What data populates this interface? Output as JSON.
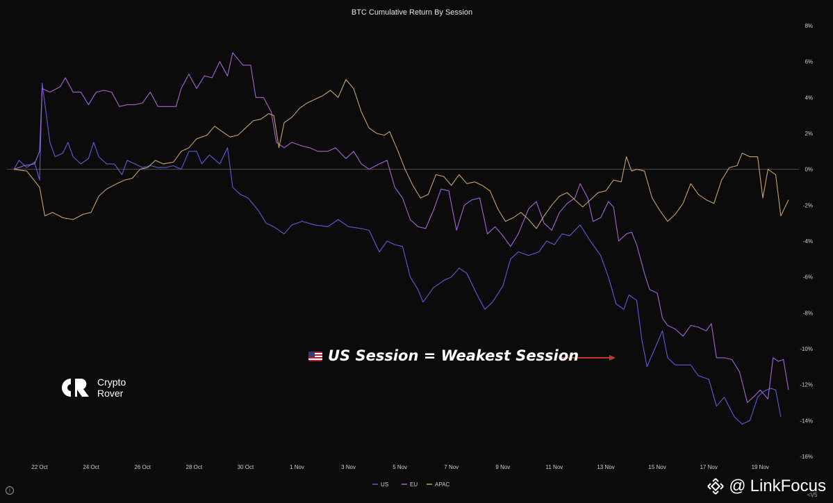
{
  "chart_data": {
    "type": "line",
    "title": "BTC Cumulative Return By Session",
    "xlabel": "",
    "ylabel": "",
    "ylim": [
      -16,
      8
    ],
    "y_ticks": [
      "8%",
      "6%",
      "4%",
      "2%",
      "0%",
      "-2%",
      "-4%",
      "-6%",
      "-8%",
      "-10%",
      "-12%",
      "-14%",
      "-16%"
    ],
    "y_tick_values": [
      8,
      6,
      4,
      2,
      0,
      -2,
      -4,
      -6,
      -8,
      -10,
      -12,
      -14,
      -16
    ],
    "x_ticks": [
      "22 Oct",
      "24 Oct",
      "26 Oct",
      "28 Oct",
      "30 Oct",
      "1 Nov",
      "3 Nov",
      "5 Nov",
      "7 Nov",
      "9 Nov",
      "11 Nov",
      "13 Nov",
      "15 Nov",
      "17 Nov",
      "19 Nov"
    ],
    "x_tick_days": [
      1,
      3,
      5,
      7,
      9,
      11,
      13,
      15,
      17,
      19,
      21,
      23,
      25,
      27,
      29
    ],
    "xlim_days": [
      0.0,
      30.1
    ],
    "zero_line": true,
    "legend_position": "bottom",
    "series": [
      {
        "name": "US",
        "color": "#5b5fd6",
        "points": [
          [
            0.0,
            0
          ],
          [
            0.2,
            0.5
          ],
          [
            0.5,
            0.1
          ],
          [
            0.8,
            0.4
          ],
          [
            1.0,
            -0.6
          ],
          [
            1.1,
            4.8
          ],
          [
            1.4,
            1.5
          ],
          [
            1.6,
            0.7
          ],
          [
            1.9,
            0.9
          ],
          [
            2.1,
            1.5
          ],
          [
            2.3,
            0.7
          ],
          [
            2.6,
            0.3
          ],
          [
            2.9,
            0.6
          ],
          [
            3.1,
            1.5
          ],
          [
            3.3,
            0.7
          ],
          [
            3.6,
            0.3
          ],
          [
            3.9,
            0.3
          ],
          [
            4.2,
            -0.3
          ],
          [
            4.4,
            0.5
          ],
          [
            4.7,
            0.3
          ],
          [
            5.0,
            0.1
          ],
          [
            5.3,
            0.2
          ],
          [
            5.6,
            0.1
          ],
          [
            5.9,
            0.1
          ],
          [
            6.2,
            0.2
          ],
          [
            6.5,
            0.0
          ],
          [
            6.8,
            1.0
          ],
          [
            7.1,
            1.0
          ],
          [
            7.3,
            0.3
          ],
          [
            7.6,
            0.8
          ],
          [
            8.0,
            0.3
          ],
          [
            8.3,
            1.2
          ],
          [
            8.5,
            -1.0
          ],
          [
            8.8,
            -1.4
          ],
          [
            9.1,
            -1.6
          ],
          [
            9.5,
            -2.3
          ],
          [
            9.8,
            -3.0
          ],
          [
            10.1,
            -3.2
          ],
          [
            10.5,
            -3.6
          ],
          [
            10.8,
            -3.1
          ],
          [
            11.2,
            -2.9
          ],
          [
            11.7,
            -3.1
          ],
          [
            12.2,
            -3.2
          ],
          [
            12.6,
            -2.8
          ],
          [
            13.0,
            -3.2
          ],
          [
            13.5,
            -3.3
          ],
          [
            13.8,
            -3.4
          ],
          [
            14.2,
            -4.6
          ],
          [
            14.5,
            -4.0
          ],
          [
            14.8,
            -4.2
          ],
          [
            15.1,
            -4.3
          ],
          [
            15.4,
            -6.0
          ],
          [
            15.7,
            -6.7
          ],
          [
            15.9,
            -7.4
          ],
          [
            16.3,
            -6.6
          ],
          [
            16.7,
            -6.2
          ],
          [
            17.0,
            -6.0
          ],
          [
            17.3,
            -5.5
          ],
          [
            17.6,
            -5.8
          ],
          [
            18.0,
            -7.0
          ],
          [
            18.3,
            -7.8
          ],
          [
            18.6,
            -7.4
          ],
          [
            19.0,
            -6.5
          ],
          [
            19.3,
            -5.0
          ],
          [
            19.6,
            -4.6
          ],
          [
            20.0,
            -4.8
          ],
          [
            20.4,
            -4.6
          ],
          [
            20.7,
            -4.0
          ],
          [
            21.0,
            -4.2
          ],
          [
            21.3,
            -3.6
          ],
          [
            21.6,
            -3.7
          ],
          [
            22.0,
            -3.1
          ],
          [
            22.4,
            -4.0
          ],
          [
            22.8,
            -4.8
          ],
          [
            23.1,
            -6.0
          ],
          [
            23.4,
            -7.5
          ],
          [
            23.7,
            -7.8
          ],
          [
            23.9,
            -7.0
          ],
          [
            24.2,
            -7.3
          ],
          [
            24.4,
            -9.5
          ],
          [
            24.6,
            -11.0
          ],
          [
            24.9,
            -10.0
          ],
          [
            25.2,
            -9.0
          ],
          [
            25.4,
            -10.5
          ],
          [
            25.7,
            -10.9
          ],
          [
            26.0,
            -10.9
          ],
          [
            26.3,
            -10.9
          ],
          [
            26.6,
            -11.5
          ],
          [
            27.0,
            -11.7
          ],
          [
            27.3,
            -13.2
          ],
          [
            27.6,
            -12.7
          ],
          [
            28.0,
            -13.8
          ],
          [
            28.3,
            -14.2
          ],
          [
            28.6,
            -14.0
          ],
          [
            28.9,
            -12.7
          ],
          [
            29.1,
            -12.4
          ],
          [
            29.4,
            -12.2
          ],
          [
            29.6,
            -12.3
          ],
          [
            29.8,
            -13.8
          ]
        ]
      },
      {
        "name": "EU",
        "color": "#a665d6",
        "points": [
          [
            0.0,
            0
          ],
          [
            0.4,
            0.2
          ],
          [
            0.8,
            0.3
          ],
          [
            1.0,
            1.0
          ],
          [
            1.1,
            4.5
          ],
          [
            1.4,
            4.3
          ],
          [
            1.8,
            4.6
          ],
          [
            2.0,
            5.1
          ],
          [
            2.3,
            4.3
          ],
          [
            2.6,
            4.3
          ],
          [
            2.9,
            3.6
          ],
          [
            3.2,
            4.3
          ],
          [
            3.5,
            4.4
          ],
          [
            3.8,
            4.3
          ],
          [
            4.1,
            3.5
          ],
          [
            4.4,
            3.6
          ],
          [
            4.7,
            3.6
          ],
          [
            5.0,
            3.7
          ],
          [
            5.3,
            4.3
          ],
          [
            5.6,
            3.5
          ],
          [
            6.0,
            3.5
          ],
          [
            6.3,
            3.5
          ],
          [
            6.5,
            4.5
          ],
          [
            6.8,
            5.3
          ],
          [
            7.1,
            4.5
          ],
          [
            7.4,
            5.2
          ],
          [
            7.7,
            5.1
          ],
          [
            8.0,
            6.0
          ],
          [
            8.3,
            5.2
          ],
          [
            8.5,
            6.5
          ],
          [
            8.9,
            5.8
          ],
          [
            9.2,
            5.8
          ],
          [
            9.4,
            4.0
          ],
          [
            9.7,
            4.0
          ],
          [
            10.0,
            3.2
          ],
          [
            10.2,
            1.5
          ],
          [
            10.5,
            1.2
          ],
          [
            10.8,
            1.5
          ],
          [
            11.2,
            1.3
          ],
          [
            11.5,
            1.2
          ],
          [
            11.8,
            1.0
          ],
          [
            12.2,
            1.0
          ],
          [
            12.5,
            1.2
          ],
          [
            12.9,
            0.6
          ],
          [
            13.2,
            1.0
          ],
          [
            13.5,
            0.3
          ],
          [
            13.8,
            0.0
          ],
          [
            14.2,
            0.3
          ],
          [
            14.5,
            0.5
          ],
          [
            14.8,
            -1.0
          ],
          [
            15.1,
            -1.6
          ],
          [
            15.4,
            -2.8
          ],
          [
            15.7,
            -3.2
          ],
          [
            16.0,
            -3.3
          ],
          [
            16.3,
            -2.3
          ],
          [
            16.6,
            -1.1
          ],
          [
            16.9,
            -1.2
          ],
          [
            17.2,
            -3.4
          ],
          [
            17.5,
            -2.0
          ],
          [
            17.8,
            -1.7
          ],
          [
            18.1,
            -1.6
          ],
          [
            18.4,
            -3.6
          ],
          [
            18.7,
            -3.2
          ],
          [
            19.0,
            -3.7
          ],
          [
            19.3,
            -4.3
          ],
          [
            19.6,
            -3.6
          ],
          [
            20.0,
            -2.2
          ],
          [
            20.3,
            -1.8
          ],
          [
            20.6,
            -3.0
          ],
          [
            20.9,
            -3.4
          ],
          [
            21.2,
            -2.4
          ],
          [
            21.5,
            -1.9
          ],
          [
            21.8,
            -1.6
          ],
          [
            22.0,
            -0.8
          ],
          [
            22.3,
            -1.6
          ],
          [
            22.5,
            -2.9
          ],
          [
            22.8,
            -2.7
          ],
          [
            23.1,
            -1.8
          ],
          [
            23.3,
            -2.1
          ],
          [
            23.5,
            -4.0
          ],
          [
            23.8,
            -3.6
          ],
          [
            24.0,
            -3.5
          ],
          [
            24.2,
            -4.2
          ],
          [
            24.5,
            -5.8
          ],
          [
            24.7,
            -6.7
          ],
          [
            25.0,
            -6.9
          ],
          [
            25.2,
            -8.3
          ],
          [
            25.4,
            -8.7
          ],
          [
            25.7,
            -8.9
          ],
          [
            26.0,
            -9.3
          ],
          [
            26.3,
            -8.7
          ],
          [
            26.6,
            -8.8
          ],
          [
            26.9,
            -9.0
          ],
          [
            27.1,
            -8.6
          ],
          [
            27.3,
            -10.5
          ],
          [
            27.6,
            -10.5
          ],
          [
            27.9,
            -10.6
          ],
          [
            28.2,
            -11.3
          ],
          [
            28.5,
            -13.0
          ],
          [
            28.8,
            -12.6
          ],
          [
            29.0,
            -12.3
          ],
          [
            29.3,
            -12.8
          ],
          [
            29.5,
            -10.5
          ],
          [
            29.7,
            -10.7
          ],
          [
            29.9,
            -10.6
          ],
          [
            30.1,
            -12.3
          ]
        ]
      },
      {
        "name": "APAC",
        "color": "#c9a26a",
        "points": [
          [
            0.0,
            0
          ],
          [
            0.5,
            -0.1
          ],
          [
            1.0,
            -1.0
          ],
          [
            1.2,
            -2.6
          ],
          [
            1.5,
            -2.4
          ],
          [
            1.9,
            -2.7
          ],
          [
            2.3,
            -2.8
          ],
          [
            2.7,
            -2.5
          ],
          [
            3.0,
            -2.4
          ],
          [
            3.3,
            -1.5
          ],
          [
            3.6,
            -1.1
          ],
          [
            4.0,
            -0.8
          ],
          [
            4.3,
            -0.6
          ],
          [
            4.6,
            -0.5
          ],
          [
            4.9,
            0.0
          ],
          [
            5.2,
            0.1
          ],
          [
            5.5,
            0.5
          ],
          [
            5.8,
            0.3
          ],
          [
            6.2,
            0.4
          ],
          [
            6.5,
            1.0
          ],
          [
            6.8,
            1.2
          ],
          [
            7.1,
            1.7
          ],
          [
            7.5,
            1.9
          ],
          [
            7.8,
            2.4
          ],
          [
            8.1,
            2.1
          ],
          [
            8.4,
            1.8
          ],
          [
            8.7,
            1.9
          ],
          [
            9.0,
            2.3
          ],
          [
            9.3,
            2.7
          ],
          [
            9.6,
            2.8
          ],
          [
            9.9,
            3.1
          ],
          [
            10.1,
            3.0
          ],
          [
            10.3,
            1.2
          ],
          [
            10.5,
            2.6
          ],
          [
            10.8,
            2.9
          ],
          [
            11.1,
            3.4
          ],
          [
            11.4,
            3.7
          ],
          [
            11.7,
            3.9
          ],
          [
            12.0,
            4.1
          ],
          [
            12.3,
            4.4
          ],
          [
            12.6,
            4.0
          ],
          [
            12.9,
            5.0
          ],
          [
            13.2,
            4.5
          ],
          [
            13.5,
            3.2
          ],
          [
            13.8,
            2.3
          ],
          [
            14.1,
            2.0
          ],
          [
            14.4,
            1.9
          ],
          [
            14.6,
            2.1
          ],
          [
            14.9,
            1.1
          ],
          [
            15.2,
            0.0
          ],
          [
            15.5,
            -0.9
          ],
          [
            15.8,
            -1.6
          ],
          [
            16.1,
            -1.4
          ],
          [
            16.4,
            -0.3
          ],
          [
            16.7,
            -0.4
          ],
          [
            17.0,
            -0.9
          ],
          [
            17.3,
            -0.3
          ],
          [
            17.6,
            -0.8
          ],
          [
            17.9,
            -0.7
          ],
          [
            18.2,
            -0.9
          ],
          [
            18.5,
            -1.2
          ],
          [
            18.8,
            -2.2
          ],
          [
            19.1,
            -2.9
          ],
          [
            19.4,
            -2.7
          ],
          [
            19.7,
            -2.4
          ],
          [
            20.0,
            -2.8
          ],
          [
            20.3,
            -3.3
          ],
          [
            20.6,
            -2.6
          ],
          [
            20.9,
            -2.0
          ],
          [
            21.2,
            -1.5
          ],
          [
            21.5,
            -1.3
          ],
          [
            21.8,
            -1.7
          ],
          [
            22.1,
            -2.1
          ],
          [
            22.4,
            -1.7
          ],
          [
            22.7,
            -1.3
          ],
          [
            23.0,
            -1.2
          ],
          [
            23.3,
            -0.6
          ],
          [
            23.6,
            -0.7
          ],
          [
            23.8,
            0.7
          ],
          [
            24.0,
            -0.1
          ],
          [
            24.2,
            0.0
          ],
          [
            24.5,
            -0.1
          ],
          [
            24.8,
            -1.6
          ],
          [
            25.1,
            -2.3
          ],
          [
            25.4,
            -2.9
          ],
          [
            25.7,
            -2.5
          ],
          [
            26.0,
            -1.9
          ],
          [
            26.3,
            -0.8
          ],
          [
            26.6,
            -1.4
          ],
          [
            26.9,
            -1.7
          ],
          [
            27.2,
            -1.9
          ],
          [
            27.5,
            -0.6
          ],
          [
            27.8,
            0.1
          ],
          [
            28.1,
            0.2
          ],
          [
            28.3,
            0.9
          ],
          [
            28.6,
            0.7
          ],
          [
            28.9,
            0.7
          ],
          [
            29.1,
            -1.6
          ],
          [
            29.3,
            0.0
          ],
          [
            29.6,
            -0.3
          ],
          [
            29.8,
            -2.6
          ],
          [
            30.1,
            -1.7
          ]
        ]
      }
    ]
  },
  "annotation": {
    "text": "US Session = Weakest Session",
    "flag_icon": "us-flag-icon",
    "arrow_color": "#c0392b"
  },
  "logo": {
    "line1": "Crypto",
    "line2": "Rover"
  },
  "watermark": {
    "text": "LinkFocus",
    "at_sign": "@",
    "icon": "binance-diamond-icon"
  },
  "info_icon": "info-icon",
  "corner_text": "<V5"
}
